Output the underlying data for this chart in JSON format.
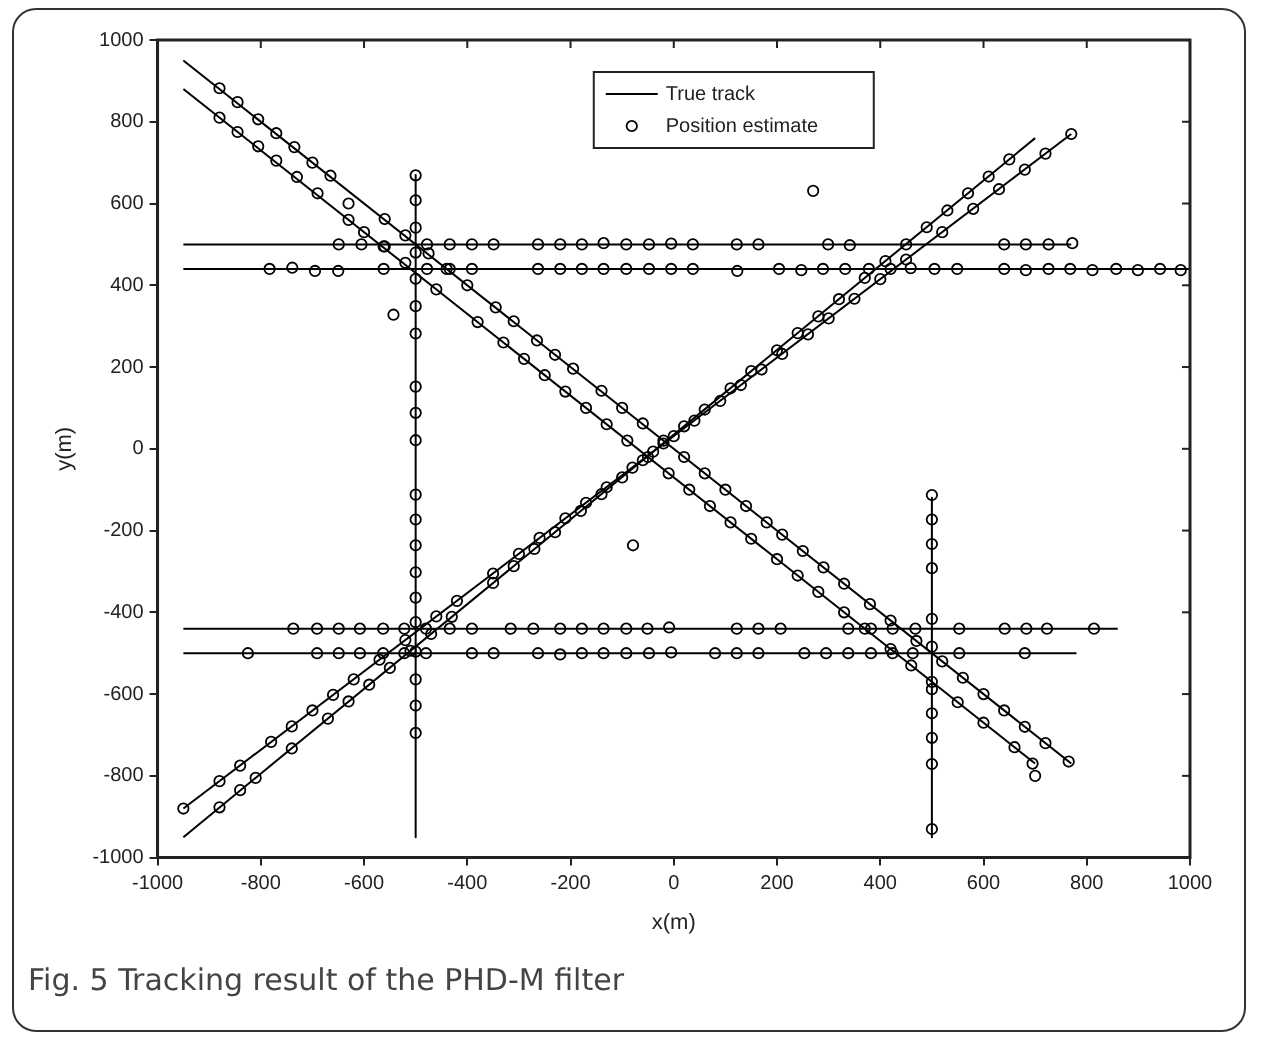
{
  "chart_data": {
    "type": "scatter",
    "xlabel": "x(m)",
    "ylabel": "y(m)",
    "annotations": [
      "Fig. 5 Tracking result of the PHD-M filter"
    ],
    "xlim": [
      -1000,
      1000
    ],
    "ylim": [
      -1000,
      1000
    ],
    "xticks": [
      -1000,
      -800,
      -600,
      -400,
      -200,
      0,
      200,
      400,
      600,
      800,
      1000
    ],
    "yticks": [
      -1000,
      -800,
      -600,
      -400,
      -200,
      0,
      200,
      400,
      600,
      800,
      1000
    ],
    "grid": false,
    "legend": "top center",
    "line_style": "solid",
    "series": [
      {
        "name": "True track",
        "type": "line",
        "color": "#000000",
        "x": [
          -950,
          770
        ],
        "values": [
          500,
          500
        ]
      },
      {
        "type": "line",
        "color": "#000000",
        "x": [
          -950,
          1000
        ],
        "values": [
          440,
          440
        ]
      },
      {
        "type": "line",
        "color": "#000000",
        "x": [
          -950,
          860
        ],
        "values": [
          -440,
          -440
        ]
      },
      {
        "type": "line",
        "color": "#000000",
        "x": [
          -950,
          780
        ],
        "values": [
          -500,
          -500
        ]
      },
      {
        "type": "line",
        "color": "#000000",
        "x": [
          -500,
          -500
        ],
        "values": [
          670,
          -950
        ]
      },
      {
        "type": "line",
        "color": "#000000",
        "x": [
          500,
          500
        ],
        "values": [
          -120,
          -950
        ]
      },
      {
        "type": "line",
        "color": "#000000",
        "x": [
          -950,
          770
        ],
        "values": [
          950,
          -770
        ]
      },
      {
        "type": "line",
        "color": "#000000",
        "x": [
          -950,
          700
        ],
        "values": [
          880,
          -770
        ]
      },
      {
        "type": "line",
        "color": "#000000",
        "x": [
          -950,
          700
        ],
        "values": [
          -950,
          760
        ]
      },
      {
        "type": "line",
        "color": "#000000",
        "x": [
          -950,
          770
        ],
        "values": [
          -880,
          770
        ]
      },
      {
        "name": "Position estimate",
        "color": "#000000",
        "marker": "circle",
        "x": [
          -649,
          -605,
          -562,
          -478,
          -434,
          -391,
          -349,
          -263,
          -220,
          -178,
          -136,
          -92,
          -48,
          -5,
          37,
          122,
          164,
          299,
          341,
          640,
          682,
          726,
          772,
          -783,
          -739,
          -695,
          -650,
          -562,
          -478,
          -434,
          -391,
          -263,
          -220,
          -178,
          -136,
          -92,
          -48,
          -5,
          37,
          123,
          204,
          247,
          289,
          332,
          378,
          420,
          459,
          505,
          549,
          640,
          682,
          726,
          768,
          811,
          857,
          899,
          942,
          982,
          -500,
          -500,
          -500,
          -500,
          -500,
          -500,
          -500,
          -500,
          -500,
          -500,
          -500,
          -500,
          -500,
          -500,
          -500,
          -500,
          -500,
          -500,
          -500,
          -500,
          500,
          500,
          500,
          500,
          500,
          500,
          500,
          500,
          500,
          500,
          500,
          -737,
          -691,
          -649,
          -608,
          -563,
          -522,
          -480,
          -434,
          -391,
          -316,
          -272,
          -220,
          -178,
          -136,
          -92,
          -51,
          -9,
          122,
          164,
          207,
          338,
          382,
          424,
          468,
          553,
          641,
          683,
          723,
          814,
          -825,
          -691,
          -649,
          -608,
          -563,
          -522,
          -480,
          -391,
          -349,
          -263,
          -220,
          -178,
          -136,
          -92,
          -48,
          -5,
          80,
          122,
          164,
          253,
          295,
          338,
          382,
          424,
          463,
          553,
          680,
          -880,
          -845,
          -805,
          -770,
          -735,
          -700,
          -665,
          -630,
          -560,
          -520,
          -475,
          -440,
          -400,
          -345,
          -310,
          -265,
          -230,
          -195,
          -140,
          -100,
          -60,
          -20,
          20,
          60,
          100,
          140,
          180,
          210,
          250,
          290,
          330,
          380,
          420,
          470,
          520,
          560,
          600,
          640,
          680,
          720,
          765,
          -880,
          -845,
          -805,
          -770,
          -730,
          -690,
          -630,
          -600,
          -560,
          -520,
          -460,
          -380,
          -330,
          -290,
          -250,
          -210,
          -170,
          -130,
          -90,
          -50,
          -10,
          30,
          70,
          110,
          150,
          200,
          240,
          280,
          330,
          370,
          420,
          460,
          500,
          550,
          600,
          660,
          695,
          700,
          -880,
          -840,
          -810,
          -740,
          -670,
          -630,
          -590,
          -550,
          -510,
          -470,
          -430,
          -350,
          -310,
          -270,
          -230,
          -180,
          -140,
          -100,
          -60,
          -20,
          20,
          60,
          110,
          150,
          200,
          240,
          280,
          320,
          370,
          410,
          450,
          490,
          530,
          570,
          610,
          650,
          -950,
          -880,
          -840,
          -780,
          -740,
          -700,
          -660,
          -620,
          -570,
          -520,
          -460,
          -420,
          -350,
          -300,
          -260,
          -210,
          -170,
          -130,
          -80,
          -40,
          0,
          40,
          90,
          130,
          170,
          210,
          260,
          300,
          350,
          400,
          450,
          520,
          580,
          630,
          680,
          720,
          770,
          -543,
          270,
          -79
        ],
        "values": [
          500,
          500,
          495,
          500,
          500,
          500,
          500,
          500,
          500,
          500,
          503,
          500,
          500,
          502,
          500,
          500,
          500,
          500,
          498,
          500,
          500,
          500,
          503,
          440,
          443,
          435,
          435,
          440,
          440,
          440,
          440,
          440,
          440,
          440,
          440,
          440,
          440,
          440,
          440,
          435,
          440,
          437,
          440,
          440,
          440,
          440,
          442,
          440,
          440,
          440,
          437,
          440,
          440,
          437,
          440,
          437,
          440,
          437,
          669,
          608,
          541,
          480,
          416,
          349,
          282,
          152,
          88,
          21,
          -112,
          -173,
          -236,
          -302,
          -364,
          -424,
          -496,
          -564,
          -628,
          -695,
          -113,
          -173,
          -233,
          -292,
          -416,
          -484,
          -588,
          -647,
          -707,
          -771,
          -930,
          -440,
          -440,
          -440,
          -440,
          -440,
          -440,
          -440,
          -440,
          -440,
          -440,
          -440,
          -440,
          -440,
          -440,
          -440,
          -440,
          -437,
          -440,
          -440,
          -440,
          -440,
          -440,
          -440,
          -440,
          -440,
          -440,
          -440,
          -440,
          -440,
          -500,
          -500,
          -500,
          -500,
          -500,
          -500,
          -500,
          -500,
          -500,
          -500,
          -503,
          -500,
          -500,
          -500,
          -500,
          -498,
          -500,
          -500,
          -500,
          -500,
          -500,
          -500,
          -500,
          -500,
          -500,
          -500,
          -500,
          882,
          848,
          806,
          772,
          738,
          700,
          668,
          600,
          562,
          522,
          478,
          440,
          400,
          346,
          312,
          265,
          230,
          196,
          142,
          100,
          62,
          20,
          -20,
          -60,
          -100,
          -140,
          -180,
          -210,
          -250,
          -290,
          -330,
          -380,
          -420,
          -470,
          -520,
          -560,
          -600,
          -640,
          -680,
          -720,
          -765,
          810,
          775,
          740,
          705,
          665,
          625,
          560,
          530,
          495,
          455,
          390,
          310,
          260,
          220,
          180,
          140,
          100,
          60,
          20,
          -20,
          -60,
          -100,
          -140,
          -180,
          -220,
          -270,
          -310,
          -350,
          -400,
          -440,
          -490,
          -530,
          -570,
          -620,
          -670,
          -730,
          -770,
          -800,
          -877,
          -835,
          -805,
          -733,
          -660,
          -618,
          -577,
          -536,
          -494,
          -453,
          -411,
          -328,
          -287,
          -245,
          -204,
          -152,
          -111,
          -70,
          -28,
          13,
          55,
          96,
          148,
          190,
          241,
          283,
          324,
          366,
          418,
          459,
          500,
          542,
          583,
          625,
          666,
          708,
          -880,
          -813,
          -775,
          -717,
          -679,
          -640,
          -602,
          -564,
          -516,
          -468,
          -410,
          -372,
          -305,
          -257,
          -218,
          -170,
          -132,
          -94,
          -46,
          -7,
          31,
          69,
          117,
          156,
          194,
          232,
          280,
          319,
          367,
          415,
          463,
          530,
          587,
          635,
          683,
          722,
          770,
          328,
          631,
          -236
        ]
      }
    ]
  }
}
